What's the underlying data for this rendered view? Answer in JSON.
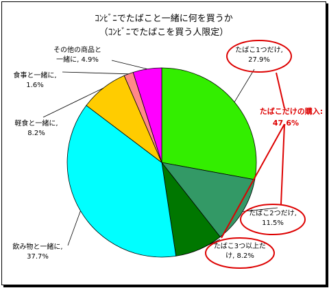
{
  "chart_data": {
    "type": "pie",
    "title": "ｺﾝﾋﾞﾆでたばこと一緒に何を買うか",
    "subtitle": "（ｺﾝﾋﾞﾆでたばこを買う人限定）",
    "slices": [
      {
        "label_line1": "たばこ1つだけ,",
        "label_line2": "27.9%",
        "value": 27.9,
        "color": "#33ee00"
      },
      {
        "label_line1": "たばこ2つだけ,",
        "label_line2": "11.5%",
        "value": 11.5,
        "color": "#339966"
      },
      {
        "label_line1": "たばこ3つ以上だ",
        "label_line2": "け, 8.2%",
        "value": 8.2,
        "color": "#007700"
      },
      {
        "label_line1": "飲み物と一緒に,",
        "label_line2": "37.7%",
        "value": 37.7,
        "color": "#00ffff"
      },
      {
        "label_line1": "軽食と一緒に,",
        "label_line2": "8.2%",
        "value": 8.2,
        "color": "#ffcc00"
      },
      {
        "label_line1": "食事と一緒に,",
        "label_line2": "1.6%",
        "value": 1.6,
        "color": "#ff8888"
      },
      {
        "label_line1": "その他の商品と",
        "label_line2": "一緒に, 4.9%",
        "value": 4.9,
        "color": "#ff00ff"
      }
    ],
    "annotation": {
      "line1": "たばこだけの購入:",
      "line2": "47.6%",
      "color": "#dd0000"
    }
  }
}
